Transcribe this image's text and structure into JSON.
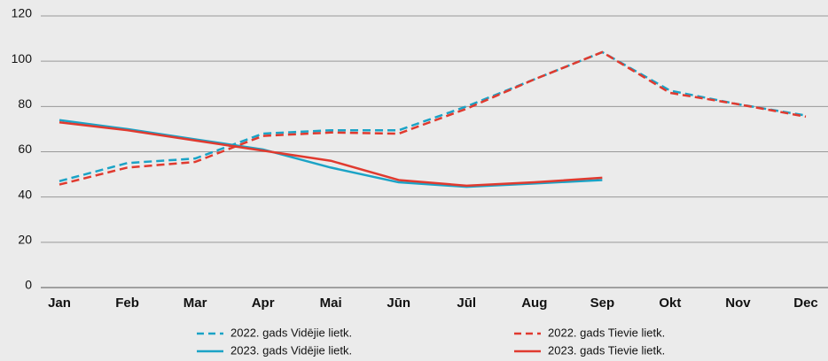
{
  "chart_data": {
    "type": "line",
    "categories": [
      "Jan",
      "Feb",
      "Mar",
      "Apr",
      "Mai",
      "Jūn",
      "Jūl",
      "Aug",
      "Sep",
      "Okt",
      "Nov",
      "Dec"
    ],
    "series": [
      {
        "name": "2022. gads Vidējie lietk.",
        "color": "#1ba3c6",
        "dashed": true,
        "values": [
          47,
          55,
          57,
          68,
          69.5,
          69.5,
          80,
          92,
          104,
          87,
          81,
          76
        ]
      },
      {
        "name": "2023. gads Vidējie lietk.",
        "color": "#1ba3c6",
        "dashed": false,
        "values": [
          74,
          70,
          65.5,
          61,
          53,
          46.5,
          44.5,
          46,
          47.5,
          null,
          null,
          null
        ]
      },
      {
        "name": "2022. gads Tievie lietk.",
        "color": "#e03a2f",
        "dashed": true,
        "values": [
          45.5,
          53,
          55.5,
          67,
          68.5,
          68,
          79,
          92,
          104,
          86,
          81,
          75.5
        ]
      },
      {
        "name": "2023. gads Tievie lietk.",
        "color": "#e03a2f",
        "dashed": false,
        "values": [
          73,
          69.5,
          65,
          60.5,
          56,
          47.5,
          45,
          46.5,
          48.5,
          null,
          null,
          null
        ]
      }
    ],
    "ylim": [
      0,
      120
    ],
    "yticks": [
      0,
      20,
      40,
      60,
      80,
      100,
      120
    ],
    "grid": true
  }
}
